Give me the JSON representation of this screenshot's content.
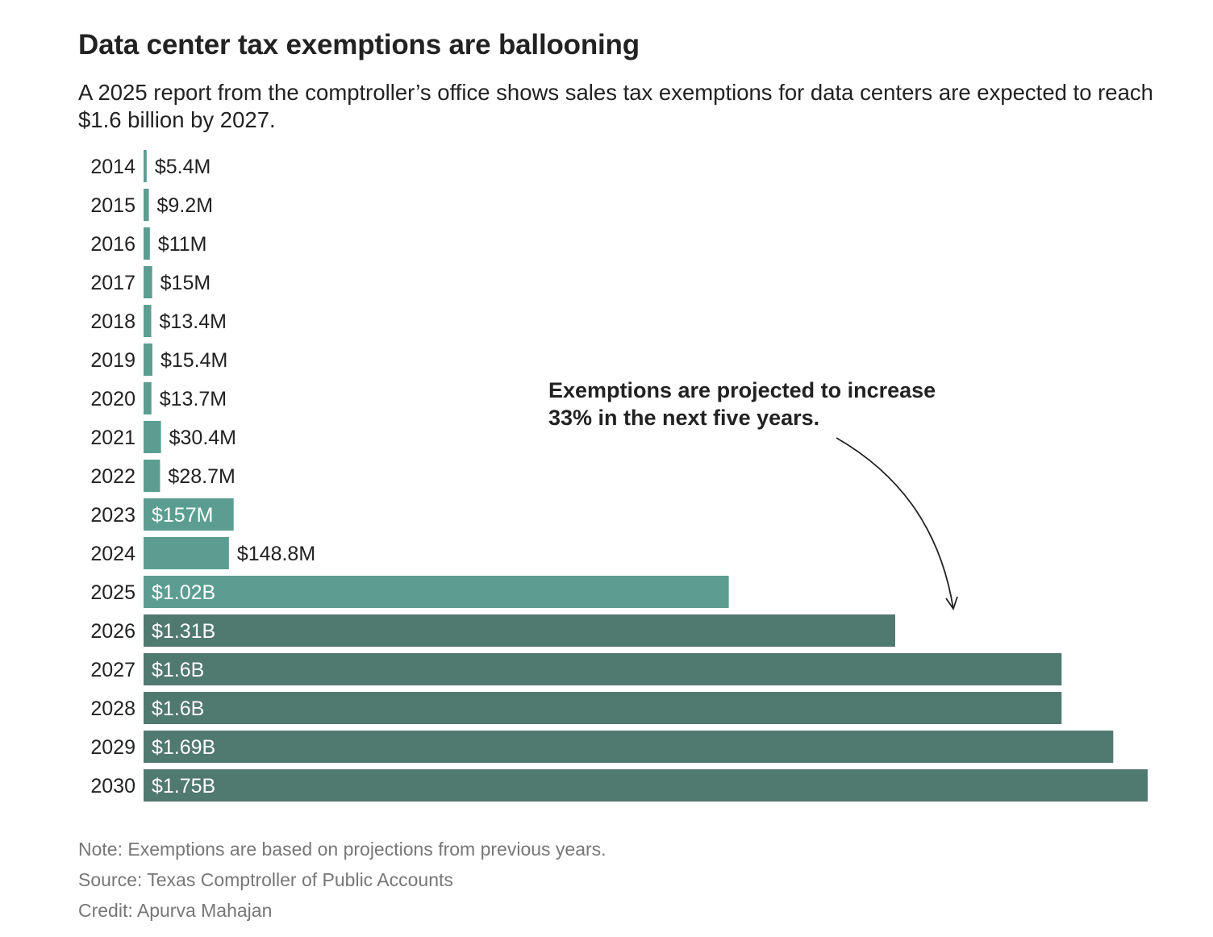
{
  "title": "Data center tax exemptions are ballooning",
  "subtitle": "A 2025 report from the comptroller’s office shows sales tax exemptions for data centers are expected to reach $1.6 billion by 2027.",
  "annotation": {
    "line1": "Exemptions are projected to increase",
    "line2": "33% in the next five years."
  },
  "footer": {
    "note": "Note: Exemptions are based on projections from previous years.",
    "source": "Source: Texas Comptroller of Public Accounts",
    "credit": "Credit: Apurva Mahajan"
  },
  "colors": {
    "actual": "#5b9e91",
    "projected": "#507970",
    "arrow": "#222222"
  },
  "chart_data": {
    "type": "bar",
    "orientation": "horizontal",
    "unit": "millions USD",
    "categories": [
      "2014",
      "2015",
      "2016",
      "2017",
      "2018",
      "2019",
      "2020",
      "2021",
      "2022",
      "2023",
      "2024",
      "2025",
      "2026",
      "2027",
      "2028",
      "2029",
      "2030"
    ],
    "values": [
      5.4,
      9.2,
      11,
      15,
      13.4,
      15.4,
      13.7,
      30.4,
      28.7,
      157,
      148.8,
      1020,
      1310,
      1600,
      1600,
      1690,
      1750
    ],
    "labels": [
      "$5.4M",
      "$9.2M",
      "$11M",
      "$15M",
      "$13.4M",
      "$15.4M",
      "$13.7M",
      "$30.4M",
      "$28.7M",
      "$157M",
      "$148.8M",
      "$1.02B",
      "$1.31B",
      "$1.6B",
      "$1.6B",
      "$1.69B",
      "$1.75B"
    ],
    "projected": [
      false,
      false,
      false,
      false,
      false,
      false,
      false,
      false,
      false,
      false,
      false,
      false,
      true,
      true,
      true,
      true,
      true
    ],
    "xlim": [
      0,
      1750
    ],
    "grid": false,
    "xlabel": "",
    "ylabel": ""
  }
}
